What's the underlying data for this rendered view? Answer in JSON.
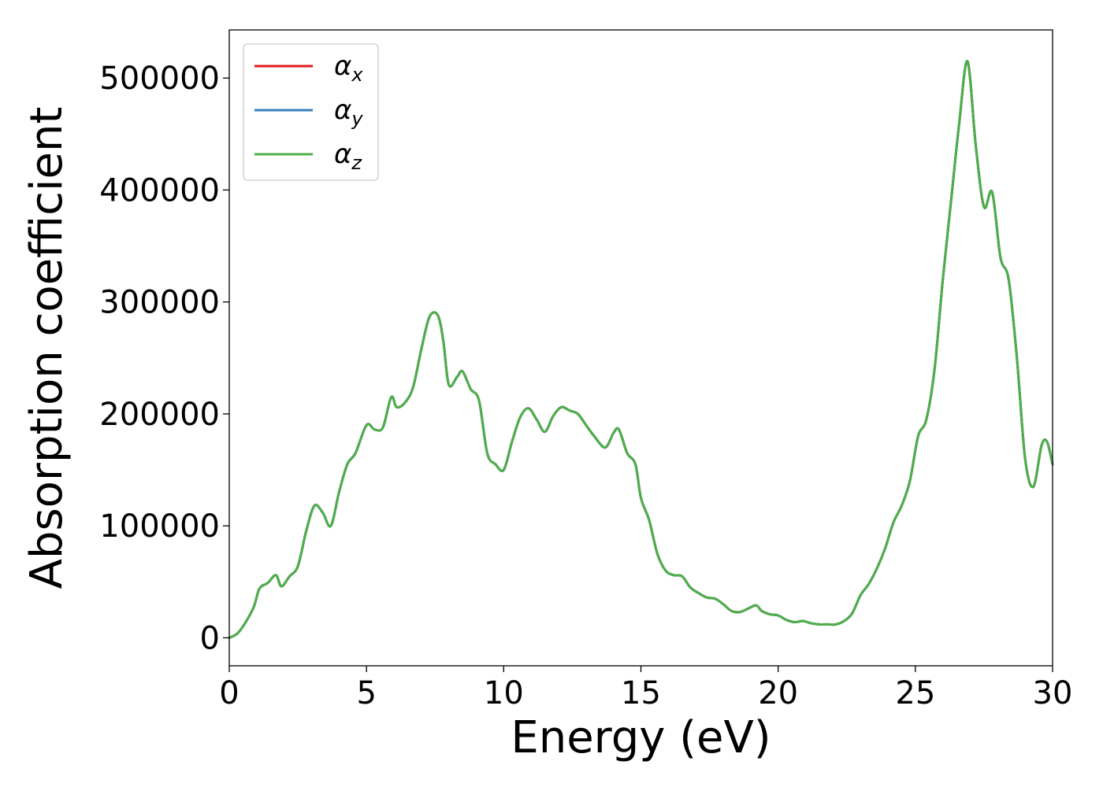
{
  "chart_data": {
    "type": "line",
    "title": "",
    "xlabel": "Energy (eV)",
    "ylabel": "Absorption coefficient",
    "xlim": [
      0,
      30
    ],
    "ylim": [
      -25000,
      543000
    ],
    "xticks": [
      0,
      5,
      10,
      15,
      20,
      25,
      30
    ],
    "xtick_labels": [
      "0",
      "5",
      "10",
      "15",
      "20",
      "25",
      "30"
    ],
    "yticks": [
      0,
      100000,
      200000,
      300000,
      400000,
      500000
    ],
    "ytick_labels": [
      "0",
      "100000",
      "200000",
      "300000",
      "400000",
      "500000"
    ],
    "grid": false,
    "legend_placement": "top-left",
    "x": [
      0,
      0.3,
      0.6,
      0.9,
      1.1,
      1.4,
      1.7,
      1.9,
      2.2,
      2.5,
      2.8,
      3.1,
      3.4,
      3.7,
      4.0,
      4.3,
      4.6,
      5.0,
      5.3,
      5.6,
      5.9,
      6.1,
      6.4,
      6.7,
      7.0,
      7.3,
      7.6,
      7.8,
      8.0,
      8.3,
      8.5,
      8.8,
      9.1,
      9.4,
      9.7,
      10.0,
      10.3,
      10.6,
      10.9,
      11.2,
      11.5,
      11.8,
      12.1,
      12.4,
      12.7,
      13.0,
      13.3,
      13.7,
      14.0,
      14.2,
      14.5,
      14.8,
      15.0,
      15.3,
      15.6,
      15.9,
      16.2,
      16.5,
      16.8,
      17.1,
      17.4,
      17.7,
      18.0,
      18.3,
      18.6,
      18.9,
      19.2,
      19.4,
      19.7,
      20.0,
      20.3,
      20.6,
      20.9,
      21.2,
      21.5,
      21.8,
      22.1,
      22.4,
      22.7,
      23.0,
      23.3,
      23.6,
      23.9,
      24.2,
      24.5,
      24.8,
      25.1,
      25.4,
      25.7,
      26.0,
      26.3,
      26.6,
      26.9,
      27.2,
      27.5,
      27.8,
      28.1,
      28.4,
      28.7,
      29.0,
      29.3,
      29.6,
      29.8,
      30.0
    ],
    "series": [
      {
        "name": "α",
        "name_sub": "x",
        "color": "#e41a1c",
        "y": [
          0,
          4000,
          14000,
          28000,
          44000,
          49000,
          56000,
          46000,
          55000,
          64000,
          95000,
          118000,
          112000,
          100000,
          130000,
          155000,
          165000,
          190000,
          186000,
          188000,
          215000,
          206000,
          210000,
          224000,
          258000,
          287000,
          288000,
          265000,
          226000,
          233000,
          238000,
          222000,
          212000,
          165000,
          155000,
          150000,
          175000,
          197000,
          205000,
          195000,
          184000,
          198000,
          206000,
          203000,
          200000,
          190000,
          180000,
          170000,
          183000,
          186000,
          165000,
          155000,
          125000,
          105000,
          75000,
          60000,
          56000,
          55000,
          45000,
          40000,
          36000,
          35000,
          30000,
          24000,
          23000,
          26000,
          29000,
          24000,
          21000,
          20000,
          16000,
          14000,
          15000,
          13000,
          12000,
          12000,
          12000,
          15000,
          22000,
          38000,
          48000,
          62000,
          80000,
          103000,
          118000,
          140000,
          180000,
          195000,
          240000,
          320000,
          390000,
          460000,
          515000,
          440000,
          385000,
          398000,
          340000,
          320000,
          250000,
          160000,
          135000,
          172000,
          175000,
          155000
        ]
      },
      {
        "name": "α",
        "name_sub": "y",
        "color": "#377eb8",
        "y": [
          0,
          4000,
          14000,
          28000,
          44000,
          49000,
          56000,
          46000,
          55000,
          64000,
          95000,
          118000,
          112000,
          100000,
          130000,
          155000,
          165000,
          190000,
          186000,
          188000,
          215000,
          206000,
          210000,
          224000,
          258000,
          287000,
          288000,
          265000,
          226000,
          233000,
          238000,
          222000,
          212000,
          165000,
          155000,
          150000,
          175000,
          197000,
          205000,
          195000,
          184000,
          198000,
          206000,
          203000,
          200000,
          190000,
          180000,
          170000,
          183000,
          186000,
          165000,
          155000,
          125000,
          105000,
          75000,
          60000,
          56000,
          55000,
          45000,
          40000,
          36000,
          35000,
          30000,
          24000,
          23000,
          26000,
          29000,
          24000,
          21000,
          20000,
          16000,
          14000,
          15000,
          13000,
          12000,
          12000,
          12000,
          15000,
          22000,
          38000,
          48000,
          62000,
          80000,
          103000,
          118000,
          140000,
          180000,
          195000,
          240000,
          320000,
          390000,
          460000,
          515000,
          440000,
          385000,
          398000,
          340000,
          320000,
          250000,
          160000,
          135000,
          172000,
          175000,
          155000
        ]
      },
      {
        "name": "α",
        "name_sub": "z",
        "color": "#4daf4a",
        "y": [
          0,
          4000,
          14000,
          28000,
          44000,
          49000,
          56000,
          46000,
          55000,
          64000,
          95000,
          118000,
          112000,
          100000,
          130000,
          155000,
          165000,
          190000,
          186000,
          188000,
          215000,
          206000,
          210000,
          224000,
          258000,
          287000,
          288000,
          265000,
          226000,
          233000,
          238000,
          222000,
          212000,
          165000,
          155000,
          150000,
          175000,
          197000,
          205000,
          195000,
          184000,
          198000,
          206000,
          203000,
          200000,
          190000,
          180000,
          170000,
          183000,
          186000,
          165000,
          155000,
          125000,
          105000,
          75000,
          60000,
          56000,
          55000,
          45000,
          40000,
          36000,
          35000,
          30000,
          24000,
          23000,
          26000,
          29000,
          24000,
          21000,
          20000,
          16000,
          14000,
          15000,
          13000,
          12000,
          12000,
          12000,
          15000,
          22000,
          38000,
          48000,
          62000,
          80000,
          103000,
          118000,
          140000,
          180000,
          195000,
          240000,
          320000,
          390000,
          460000,
          515000,
          440000,
          385000,
          398000,
          340000,
          320000,
          250000,
          160000,
          135000,
          172000,
          175000,
          155000
        ]
      }
    ]
  }
}
